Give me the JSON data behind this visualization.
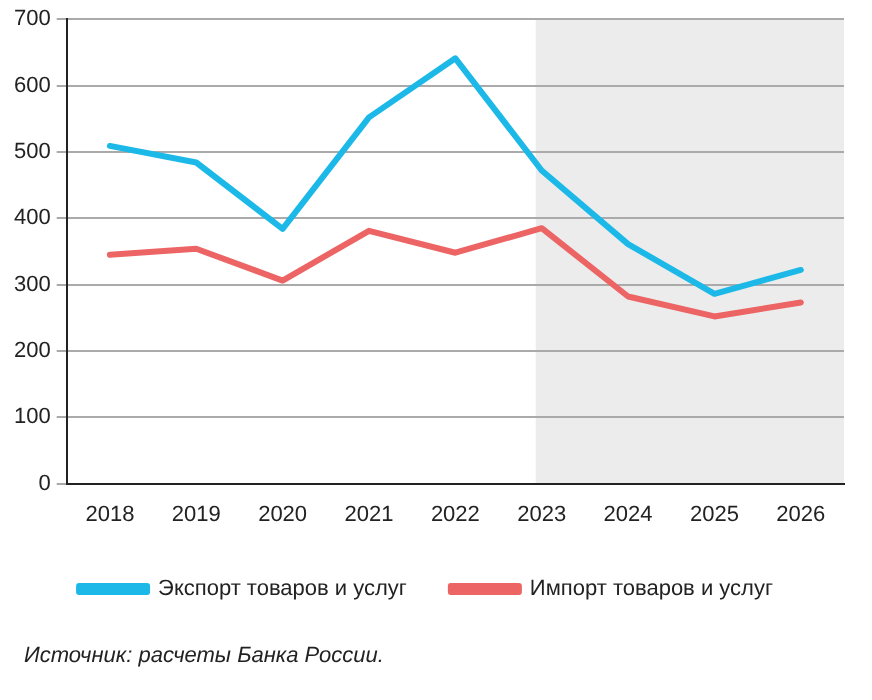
{
  "chart_data": {
    "type": "line",
    "categories": [
      "2018",
      "2019",
      "2020",
      "2021",
      "2022",
      "2023",
      "2024",
      "2025",
      "2026"
    ],
    "series": [
      {
        "name": "Экспорт товаров и услуг",
        "color": "#1cb9e8",
        "values": [
          509,
          484,
          384,
          552,
          641,
          472,
          361,
          286,
          322
        ]
      },
      {
        "name": "Импорт товаров и услуг",
        "color": "#ec6464",
        "values": [
          345,
          354,
          306,
          381,
          348,
          385,
          282,
          252,
          273
        ]
      }
    ],
    "ylim": [
      0,
      700
    ],
    "yticks": [
      0,
      100,
      200,
      300,
      400,
      500,
      600,
      700
    ],
    "grid": "y",
    "legend": "bottom",
    "marker": "none",
    "line_style": "solid",
    "bands": [
      {
        "axis": "x",
        "from": "2023",
        "to": "2026",
        "color": "#ebeceb"
      }
    ],
    "annotations": [
      "Источник: расчеты Банка России."
    ]
  }
}
